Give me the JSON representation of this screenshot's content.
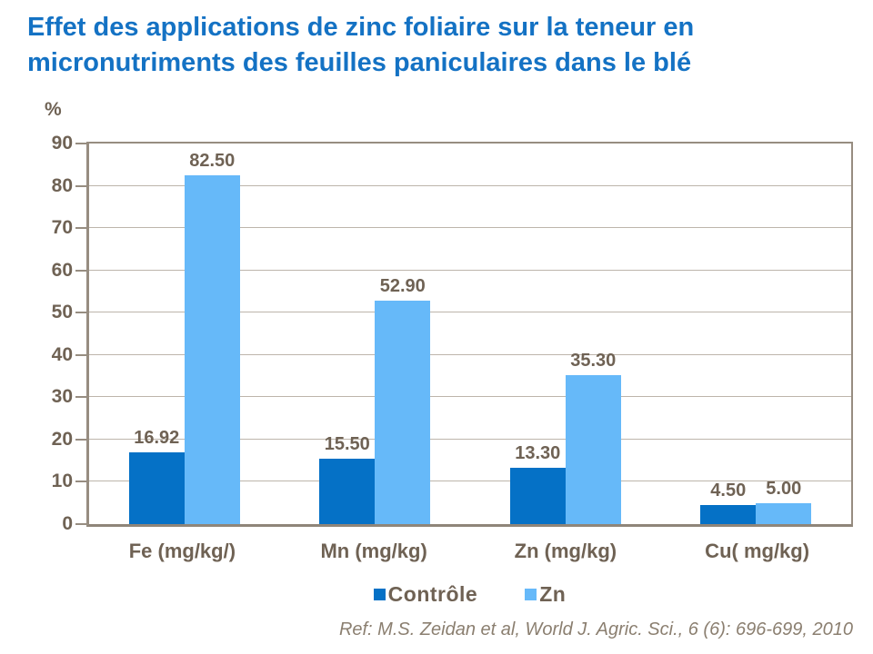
{
  "title": {
    "line1": "Effet des applications de zinc foliaire sur la teneur en",
    "line2": "micronutriments des feuilles paniculaires dans le blé"
  },
  "chart_data": {
    "type": "bar",
    "categories": [
      "Fe (mg/kg/)",
      "Mn (mg/kg)",
      "Zn (mg/kg)",
      "Cu( mg/kg)"
    ],
    "series": [
      {
        "name": "Contrôle",
        "color": "#0571C6",
        "values": [
          16.92,
          15.5,
          13.3,
          4.5
        ]
      },
      {
        "name": "Zn",
        "color": "#66B9F9",
        "values": [
          82.5,
          52.9,
          35.3,
          5.0
        ]
      }
    ],
    "title": "",
    "xlabel": "",
    "ylabel": "%",
    "ylim": [
      0,
      90
    ],
    "yticks": [
      0,
      10,
      20,
      30,
      40,
      50,
      60,
      70,
      80,
      90
    ],
    "grid": true,
    "legend_position": "bottom",
    "value_label_decimals": 2
  },
  "footer": {
    "reference": "Ref: M.S. Zeidan et al, World J. Agric. Sci., 6 (6): 696-699, 2010"
  },
  "colors": {
    "title_text": "#1472C4",
    "axis_text": "#6F6254",
    "reference_text": "#8B7F70",
    "gridline": "#BDB5AB",
    "axis_line": "#978D81",
    "series_controle": "#0571C6",
    "series_zn": "#66B9F9",
    "background": "#FFFFFF"
  }
}
